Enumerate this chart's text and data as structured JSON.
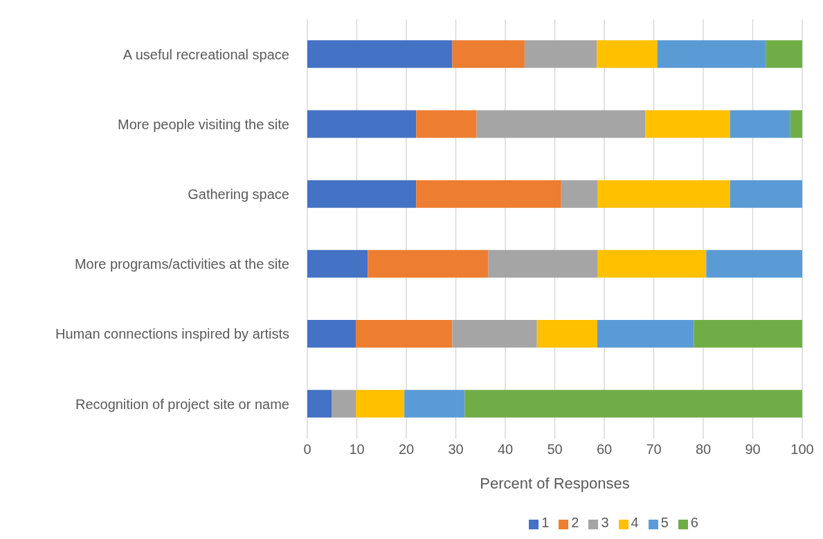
{
  "chart_data": {
    "type": "bar",
    "orientation": "horizontal",
    "stacked": true,
    "xlabel": "Percent of Responses",
    "categories": [
      "A useful recreational space",
      "More people visiting the site",
      "Gathering space",
      "More programs/activities at the site",
      "Human connections inspired by artists",
      "Recognition of project site or name"
    ],
    "series": [
      {
        "name": "1",
        "color": "#4472c4",
        "values": [
          29.3,
          22.0,
          22.0,
          12.2,
          9.8,
          4.9
        ]
      },
      {
        "name": "2",
        "color": "#ed7d31",
        "values": [
          14.6,
          12.2,
          29.3,
          24.4,
          19.5,
          0
        ]
      },
      {
        "name": "3",
        "color": "#a5a5a5",
        "values": [
          14.6,
          34.1,
          7.3,
          22.0,
          17.1,
          4.9
        ]
      },
      {
        "name": "4",
        "color": "#ffc000",
        "values": [
          12.2,
          17.1,
          26.8,
          22.0,
          12.2,
          9.8
        ]
      },
      {
        "name": "5",
        "color": "#5b9bd5",
        "values": [
          22.0,
          12.2,
          14.6,
          19.5,
          19.5,
          12.2
        ]
      },
      {
        "name": "6",
        "color": "#70ad47",
        "values": [
          7.3,
          2.4,
          0,
          0,
          22.0,
          68.3
        ]
      }
    ],
    "xlim": [
      0,
      100
    ],
    "xticks": [
      0,
      10,
      20,
      30,
      40,
      50,
      60,
      70,
      80,
      90,
      100
    ],
    "grid": "x",
    "legend": "bottom"
  }
}
